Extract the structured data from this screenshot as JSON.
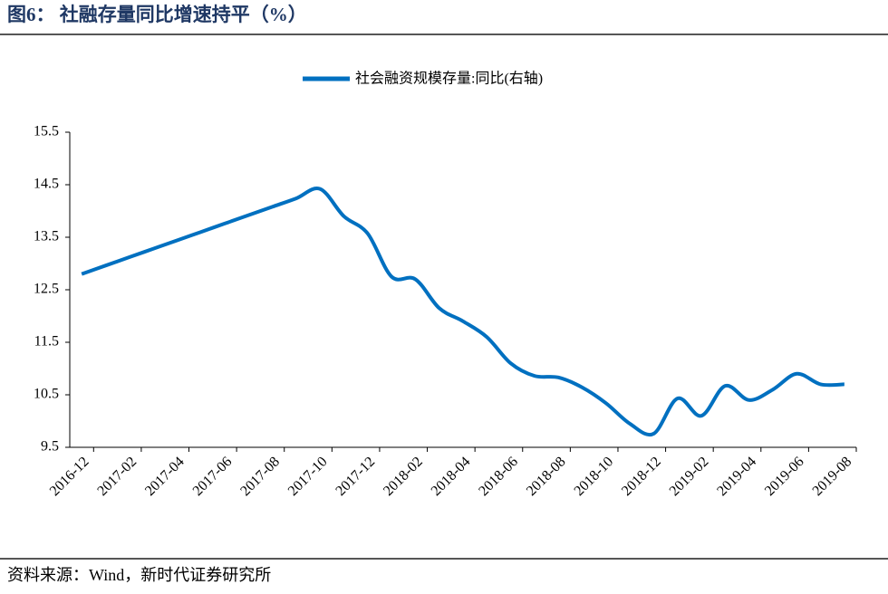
{
  "title": "图6：  社融存量同比增速持平（%）",
  "source": "资料来源：Wind，新时代证券研究所",
  "chart_data": {
    "type": "line",
    "categories": [
      "2016-12",
      null,
      "2017-02",
      null,
      "2017-04",
      null,
      "2017-06",
      null,
      "2017-08",
      null,
      "2017-10",
      null,
      "2017-12",
      null,
      "2018-02",
      null,
      "2018-04",
      null,
      "2018-06",
      null,
      "2018-08",
      null,
      "2018-10",
      null,
      "2018-12",
      null,
      "2019-02",
      null,
      "2019-04",
      null,
      "2019-06",
      null,
      "2019-08"
    ],
    "series": [
      {
        "name": "社会融资规模存量:同比(右轴)",
        "color": "#0070c0",
        "values": [
          12.8,
          12.96,
          13.12,
          13.28,
          13.44,
          13.6,
          13.76,
          13.92,
          14.08,
          14.24,
          14.42,
          13.9,
          13.57,
          12.75,
          12.7,
          12.15,
          11.9,
          11.6,
          11.1,
          10.86,
          10.83,
          10.64,
          10.34,
          9.95,
          9.76,
          10.43,
          10.1,
          10.67,
          10.4,
          10.6,
          10.9,
          10.7,
          10.7
        ]
      }
    ],
    "ylim": [
      9.5,
      15.5
    ],
    "yticks": [
      9.5,
      10.5,
      11.5,
      12.5,
      13.5,
      14.5,
      15.5
    ],
    "legend": "top"
  }
}
